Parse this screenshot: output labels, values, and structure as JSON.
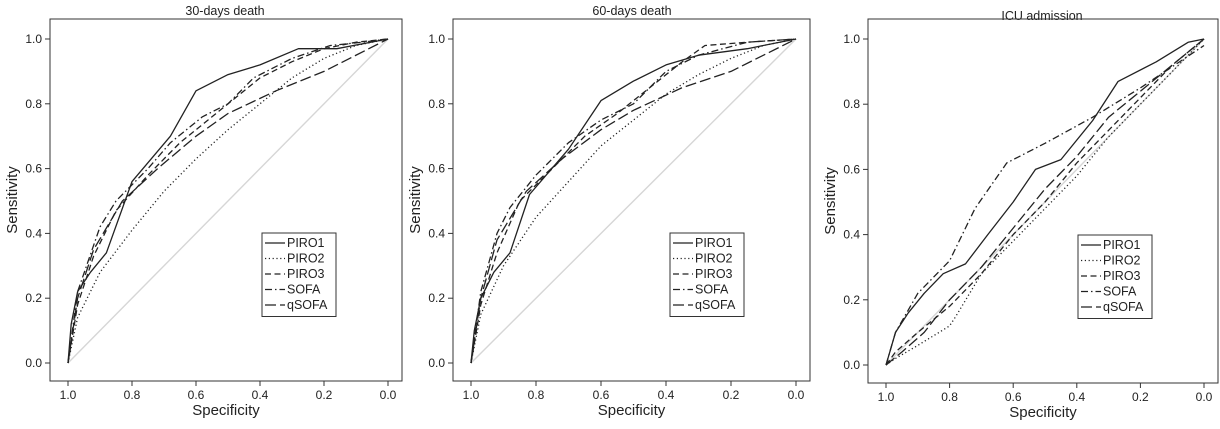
{
  "chart_data": [
    {
      "type": "line",
      "title": "30-days death",
      "xlabel": "Specificity",
      "ylabel": "Sensitivity",
      "xlim": [
        1.0,
        0.0
      ],
      "ylim": [
        0.0,
        1.0
      ],
      "xticks": [
        "1.0",
        "0.8",
        "0.6",
        "0.4",
        "0.2",
        "0.0"
      ],
      "yticks": [
        "0.0",
        "0.2",
        "0.4",
        "0.6",
        "0.8",
        "1.0"
      ],
      "reference_line": true,
      "grid": false,
      "legend_position": "bottom-right",
      "series": [
        {
          "name": "PIRO1",
          "dash": "solid",
          "x": [
            1.0,
            0.99,
            0.97,
            0.93,
            0.88,
            0.8,
            0.68,
            0.6,
            0.5,
            0.4,
            0.28,
            0.16,
            0.0
          ],
          "y": [
            0.0,
            0.12,
            0.22,
            0.28,
            0.34,
            0.56,
            0.7,
            0.84,
            0.89,
            0.92,
            0.97,
            0.97,
            1.0
          ]
        },
        {
          "name": "PIRO2",
          "dash": "dot",
          "x": [
            1.0,
            0.97,
            0.9,
            0.8,
            0.7,
            0.6,
            0.5,
            0.4,
            0.3,
            0.2,
            0.1,
            0.0
          ],
          "y": [
            0.0,
            0.14,
            0.28,
            0.41,
            0.53,
            0.63,
            0.72,
            0.8,
            0.88,
            0.94,
            0.98,
            1.0
          ]
        },
        {
          "name": "PIRO3",
          "dash": "dash",
          "x": [
            1.0,
            0.97,
            0.92,
            0.85,
            0.75,
            0.65,
            0.55,
            0.4,
            0.3,
            0.2,
            0.1,
            0.0
          ],
          "y": [
            0.0,
            0.18,
            0.33,
            0.47,
            0.58,
            0.68,
            0.76,
            0.88,
            0.93,
            0.97,
            0.99,
            1.0
          ]
        },
        {
          "name": "SOFA",
          "dash": "dashdot",
          "x": [
            1.0,
            0.97,
            0.9,
            0.85,
            0.75,
            0.68,
            0.58,
            0.5,
            0.42,
            0.3,
            0.18,
            0.08,
            0.0
          ],
          "y": [
            0.0,
            0.22,
            0.42,
            0.5,
            0.6,
            0.68,
            0.76,
            0.8,
            0.88,
            0.94,
            0.98,
            0.99,
            1.0
          ]
        },
        {
          "name": "qSOFA",
          "dash": "longdash",
          "x": [
            1.0,
            0.97,
            0.92,
            0.83,
            0.72,
            0.6,
            0.5,
            0.35,
            0.2,
            0.0
          ],
          "y": [
            0.0,
            0.2,
            0.35,
            0.5,
            0.6,
            0.7,
            0.77,
            0.84,
            0.9,
            1.0
          ]
        }
      ]
    },
    {
      "type": "line",
      "title": "60-days death",
      "xlabel": "Specificity",
      "ylabel": "Sensitivity",
      "xlim": [
        1.0,
        0.0
      ],
      "ylim": [
        0.0,
        1.0
      ],
      "xticks": [
        "1.0",
        "0.8",
        "0.6",
        "0.4",
        "0.2",
        "0.0"
      ],
      "yticks": [
        "0.0",
        "0.2",
        "0.4",
        "0.6",
        "0.8",
        "1.0"
      ],
      "reference_line": true,
      "grid": false,
      "legend_position": "bottom-right",
      "series": [
        {
          "name": "PIRO1",
          "dash": "solid",
          "x": [
            1.0,
            0.99,
            0.97,
            0.93,
            0.88,
            0.82,
            0.7,
            0.6,
            0.5,
            0.4,
            0.3,
            0.15,
            0.0
          ],
          "y": [
            0.0,
            0.1,
            0.2,
            0.28,
            0.34,
            0.52,
            0.66,
            0.81,
            0.87,
            0.92,
            0.95,
            0.97,
            1.0
          ]
        },
        {
          "name": "PIRO2",
          "dash": "dot",
          "x": [
            1.0,
            0.97,
            0.9,
            0.8,
            0.7,
            0.6,
            0.5,
            0.4,
            0.3,
            0.2,
            0.1,
            0.0
          ],
          "y": [
            0.0,
            0.15,
            0.3,
            0.45,
            0.56,
            0.67,
            0.75,
            0.83,
            0.89,
            0.94,
            0.98,
            1.0
          ]
        },
        {
          "name": "PIRO3",
          "dash": "dash",
          "x": [
            1.0,
            0.97,
            0.92,
            0.85,
            0.75,
            0.65,
            0.55,
            0.45,
            0.35,
            0.28,
            0.15,
            0.0
          ],
          "y": [
            0.0,
            0.18,
            0.34,
            0.5,
            0.6,
            0.7,
            0.77,
            0.85,
            0.93,
            0.98,
            0.99,
            1.0
          ]
        },
        {
          "name": "SOFA",
          "dash": "dashdot",
          "x": [
            1.0,
            0.97,
            0.92,
            0.88,
            0.8,
            0.7,
            0.6,
            0.5,
            0.4,
            0.3,
            0.15,
            0.0
          ],
          "y": [
            0.0,
            0.22,
            0.4,
            0.48,
            0.58,
            0.68,
            0.75,
            0.8,
            0.9,
            0.95,
            0.99,
            1.0
          ]
        },
        {
          "name": "qSOFA",
          "dash": "longdash",
          "x": [
            1.0,
            0.97,
            0.92,
            0.83,
            0.72,
            0.6,
            0.5,
            0.35,
            0.2,
            0.0
          ],
          "y": [
            0.0,
            0.2,
            0.38,
            0.53,
            0.63,
            0.72,
            0.78,
            0.85,
            0.9,
            1.0
          ]
        }
      ]
    },
    {
      "type": "line",
      "title": "ICU admission",
      "xlabel": "Specificity",
      "ylabel": "Sensitivity",
      "xlim": [
        1.0,
        0.0
      ],
      "ylim": [
        0.0,
        1.0
      ],
      "xticks": [
        "1.0",
        "0.8",
        "0.6",
        "0.4",
        "0.2",
        "0.0"
      ],
      "yticks": [
        "0.0",
        "0.2",
        "0.4",
        "0.6",
        "0.8",
        "1.0"
      ],
      "reference_line": true,
      "grid": false,
      "legend_position": "bottom-right",
      "series": [
        {
          "name": "PIRO1",
          "dash": "solid",
          "x": [
            1.0,
            0.97,
            0.93,
            0.88,
            0.82,
            0.75,
            0.68,
            0.6,
            0.53,
            0.45,
            0.35,
            0.27,
            0.15,
            0.05,
            0.0
          ],
          "y": [
            0.0,
            0.1,
            0.16,
            0.22,
            0.28,
            0.31,
            0.4,
            0.5,
            0.6,
            0.63,
            0.75,
            0.87,
            0.93,
            0.99,
            1.0
          ]
        },
        {
          "name": "PIRO2",
          "dash": "dot",
          "x": [
            1.0,
            0.97,
            0.9,
            0.8,
            0.78,
            0.7,
            0.6,
            0.5,
            0.4,
            0.3,
            0.2,
            0.1,
            0.0
          ],
          "y": [
            0.0,
            0.02,
            0.06,
            0.12,
            0.15,
            0.28,
            0.38,
            0.48,
            0.58,
            0.7,
            0.8,
            0.9,
            1.0
          ]
        },
        {
          "name": "PIRO3",
          "dash": "dash",
          "x": [
            1.0,
            0.97,
            0.9,
            0.8,
            0.7,
            0.6,
            0.5,
            0.4,
            0.3,
            0.2,
            0.1,
            0.0
          ],
          "y": [
            0.0,
            0.04,
            0.1,
            0.18,
            0.28,
            0.4,
            0.5,
            0.62,
            0.72,
            0.82,
            0.92,
            1.0
          ]
        },
        {
          "name": "SOFA",
          "dash": "dashdot",
          "x": [
            1.0,
            0.97,
            0.9,
            0.8,
            0.72,
            0.62,
            0.5,
            0.35,
            0.2,
            0.0
          ],
          "y": [
            0.0,
            0.1,
            0.22,
            0.32,
            0.48,
            0.62,
            0.68,
            0.76,
            0.85,
            0.98
          ]
        },
        {
          "name": "qSOFA",
          "dash": "longdash",
          "x": [
            1.0,
            0.95,
            0.88,
            0.8,
            0.7,
            0.6,
            0.5,
            0.4,
            0.3,
            0.2,
            0.1,
            0.0
          ],
          "y": [
            0.0,
            0.04,
            0.1,
            0.2,
            0.3,
            0.42,
            0.54,
            0.64,
            0.76,
            0.84,
            0.92,
            1.0
          ]
        }
      ]
    }
  ]
}
